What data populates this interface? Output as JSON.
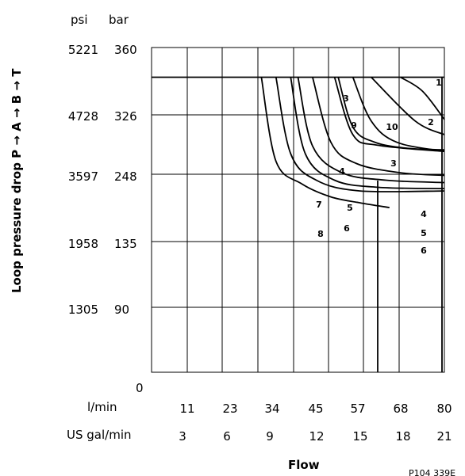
{
  "chart_data": {
    "type": "line",
    "title": "",
    "xlabel": "Flow",
    "ylabel": "Loop pressure drop  P → A → B → T",
    "corner_code": "P104 339E",
    "y_axis": {
      "units": [
        "psi",
        "bar"
      ],
      "zero_label": "0",
      "ticks": [
        {
          "bar": 90,
          "bar_label": "90",
          "psi_label": "1305"
        },
        {
          "bar": 135,
          "bar_label": "135",
          "psi_label": "1958"
        },
        {
          "bar": 248,
          "bar_label": "248",
          "psi_label": "3597"
        },
        {
          "bar": 326,
          "bar_label": "326",
          "psi_label": "4728"
        },
        {
          "bar": 360,
          "bar_label": "360",
          "psi_label": "5221"
        }
      ]
    },
    "x_axis": {
      "rows": [
        {
          "unit": "l/min",
          "labels": [
            "11",
            "23",
            "34",
            "45",
            "57",
            "68",
            "80"
          ]
        },
        {
          "unit": "US gal/min",
          "labels": [
            "3",
            "6",
            "9",
            "12",
            "15",
            "18",
            "21"
          ]
        }
      ]
    },
    "series": [
      {
        "label": "1",
        "points": [
          [
            68,
            345
          ],
          [
            74,
            338
          ],
          [
            80,
            320
          ]
        ]
      },
      {
        "label": "2",
        "points": [
          [
            60,
            345
          ],
          [
            72,
            318
          ],
          [
            80,
            300
          ]
        ]
      },
      {
        "label": "3",
        "points": [
          [
            55,
            345
          ],
          [
            60,
            318
          ],
          [
            67,
            290
          ],
          [
            80,
            278
          ]
        ]
      },
      {
        "label": "9",
        "points": [
          [
            50,
            345
          ],
          [
            55,
            300
          ],
          [
            62,
            286
          ],
          [
            80,
            278
          ]
        ]
      },
      {
        "label": "10",
        "points": [
          [
            51,
            345
          ],
          [
            55,
            310
          ],
          [
            61,
            290
          ],
          [
            70,
            282
          ],
          [
            80,
            280
          ]
        ]
      },
      {
        "label": "4",
        "points": [
          [
            44,
            345
          ],
          [
            49,
            290
          ],
          [
            56,
            262
          ],
          [
            68,
            250
          ],
          [
            80,
            246
          ]
        ]
      },
      {
        "label": "5",
        "points": [
          [
            40,
            345
          ],
          [
            44,
            285
          ],
          [
            52,
            250
          ],
          [
            64,
            238
          ],
          [
            80,
            234
          ]
        ]
      },
      {
        "label": "6",
        "points": [
          [
            38,
            345
          ],
          [
            42,
            275
          ],
          [
            50,
            238
          ],
          [
            62,
            226
          ],
          [
            80,
            224
          ]
        ]
      },
      {
        "label": "7",
        "points": [
          [
            34,
            345
          ],
          [
            38,
            275
          ],
          [
            45,
            238
          ],
          [
            57,
            220
          ],
          [
            80,
            220
          ]
        ]
      },
      {
        "label": "8",
        "points": [
          [
            30,
            345
          ],
          [
            34,
            265
          ],
          [
            41,
            232
          ],
          [
            49,
            210
          ],
          [
            57,
            200
          ],
          [
            65,
            192
          ]
        ]
      }
    ],
    "grid": true,
    "legend": "none"
  }
}
